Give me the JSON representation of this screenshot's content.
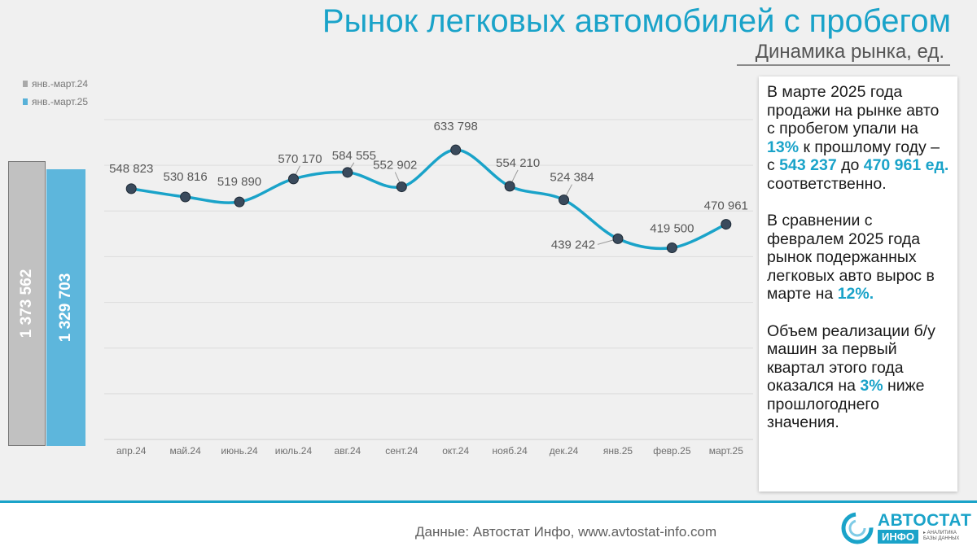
{
  "title": "Рынок легковых автомобилей с пробегом",
  "subtitle": "Динамика рынка, ед.",
  "legend": {
    "items": [
      {
        "label": "янв.-март.24",
        "color": "#a9a9a9"
      },
      {
        "label": "янв.-март.25",
        "color": "#58b1d8"
      }
    ]
  },
  "bars": [
    {
      "label": "1 373 562",
      "value": 1373562,
      "color": "#c1c1c1"
    },
    {
      "label": "1 329 703",
      "value": 1329703,
      "color": "#5db6dc"
    }
  ],
  "chart_data": {
    "type": "line",
    "categories": [
      "апр.24",
      "май.24",
      "июнь.24",
      "июль.24",
      "авг.24",
      "сент.24",
      "окт.24",
      "нояб.24",
      "дек.24",
      "янв.25",
      "февр.25",
      "март.25"
    ],
    "values": [
      548823,
      530816,
      519890,
      570170,
      584555,
      552902,
      633798,
      554210,
      524384,
      439242,
      419500,
      470961
    ],
    "value_labels": [
      "548 823",
      "530 816",
      "519 890",
      "570 170",
      "584 555",
      "552 902",
      "633 798",
      "554 210",
      "524 384",
      "439 242",
      "419 500",
      "470 961"
    ],
    "line_color": "#1aa3c9",
    "marker_color": "#3a4a5c",
    "ylim": [
      0,
      700000
    ],
    "grid": true
  },
  "info": {
    "p1": {
      "t1": "В марте 2025 года продажи на рынке авто с пробегом упали на ",
      "h1": "13%",
      "t2": " к прошлому году – с ",
      "h2": "543 237",
      "t3": " до ",
      "h3": "470 961 ед.",
      "t4": " соответственно."
    },
    "p2": {
      "t1": "В сравнении с февралем 2025 года рынок подержанных легковых авто вырос в марте на ",
      "h1": "12%."
    },
    "p3": {
      "t1": "Объем реализации б/у машин за первый квартал этого года оказался на ",
      "h1": "3%",
      "t2": " ниже прошлогоднего значения."
    }
  },
  "footer": {
    "source": "Данные: Автостат Инфо, www.avtostat-info.com",
    "logo_top": "АВТОСТАТ",
    "logo_bottom": "ИНФО",
    "logo_tag_1": "▸ АНАЛИТИКА",
    "logo_tag_2": "БАЗЫ ДАННЫХ"
  }
}
